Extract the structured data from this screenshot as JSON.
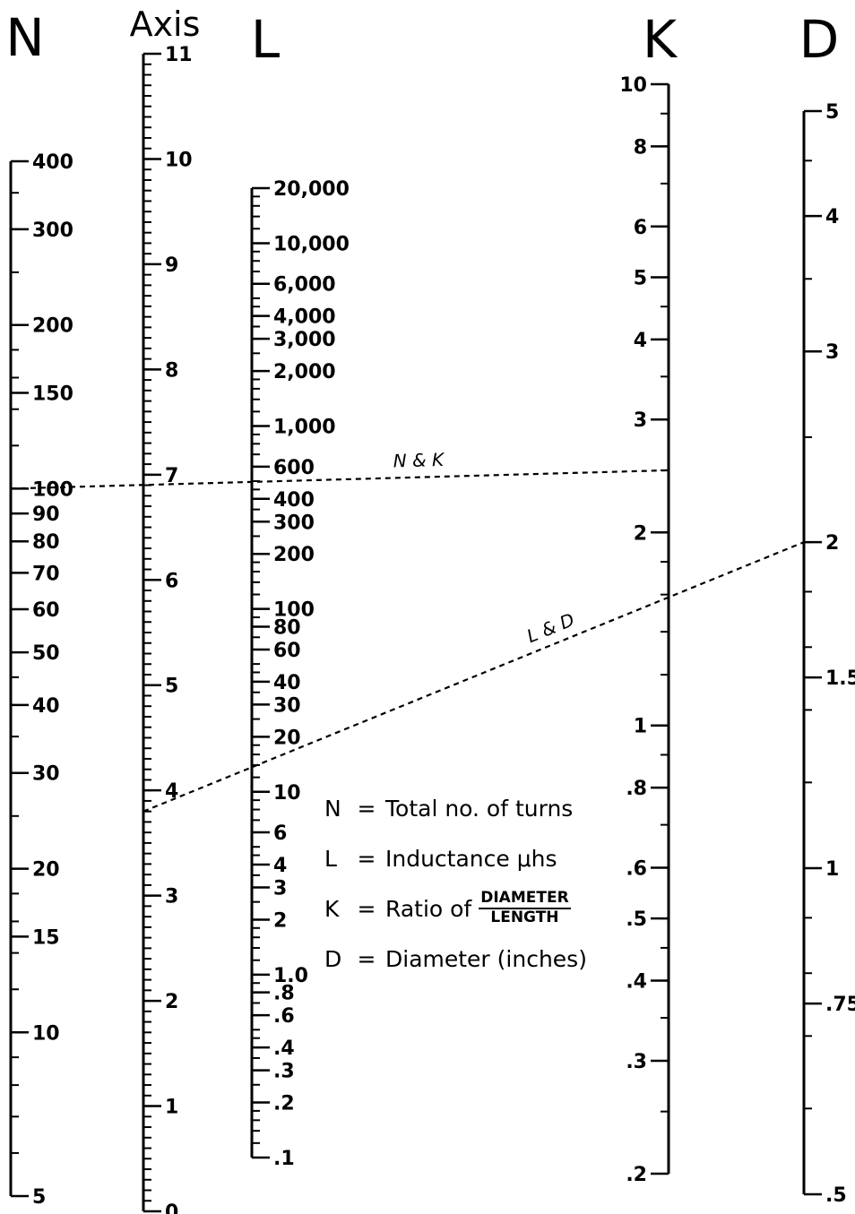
{
  "scales": [
    {
      "id": "N",
      "heading": "N",
      "type": "log",
      "range": [
        5,
        400
      ],
      "ticks_side": "right",
      "labels": [
        {
          "v": 400,
          "t": "400"
        },
        {
          "v": 300,
          "t": "300"
        },
        {
          "v": 200,
          "t": "200"
        },
        {
          "v": 150,
          "t": "150"
        },
        {
          "v": 100,
          "t": "100"
        },
        {
          "v": 90,
          "t": "90"
        },
        {
          "v": 80,
          "t": "80"
        },
        {
          "v": 70,
          "t": "70"
        },
        {
          "v": 60,
          "t": "60"
        },
        {
          "v": 50,
          "t": "50"
        },
        {
          "v": 40,
          "t": "40"
        },
        {
          "v": 30,
          "t": "30"
        },
        {
          "v": 20,
          "t": "20"
        },
        {
          "v": 15,
          "t": "15"
        },
        {
          "v": 10,
          "t": "10"
        },
        {
          "v": 5,
          "t": "5"
        }
      ]
    },
    {
      "id": "Axis",
      "heading": "Axis",
      "type": "linear",
      "range": [
        0,
        11
      ],
      "ticks_side": "right",
      "labels": [
        {
          "v": 0,
          "t": "0"
        },
        {
          "v": 1,
          "t": "1"
        },
        {
          "v": 2,
          "t": "2"
        },
        {
          "v": 3,
          "t": "3"
        },
        {
          "v": 4,
          "t": "4"
        },
        {
          "v": 5,
          "t": "5"
        },
        {
          "v": 6,
          "t": "6"
        },
        {
          "v": 7,
          "t": "7"
        },
        {
          "v": 8,
          "t": "8"
        },
        {
          "v": 9,
          "t": "9"
        },
        {
          "v": 10,
          "t": "10"
        },
        {
          "v": 11,
          "t": "11"
        }
      ]
    },
    {
      "id": "L",
      "heading": "L",
      "type": "log",
      "range": [
        0.1,
        20000
      ],
      "ticks_side": "right",
      "labels": [
        {
          "v": 20000,
          "t": "20,000"
        },
        {
          "v": 10000,
          "t": "10,000"
        },
        {
          "v": 6000,
          "t": "6,000"
        },
        {
          "v": 4000,
          "t": "4,000"
        },
        {
          "v": 3000,
          "t": "3,000"
        },
        {
          "v": 2000,
          "t": "2,000"
        },
        {
          "v": 1000,
          "t": "1,000"
        },
        {
          "v": 600,
          "t": "600"
        },
        {
          "v": 400,
          "t": "400"
        },
        {
          "v": 300,
          "t": "300"
        },
        {
          "v": 200,
          "t": "200"
        },
        {
          "v": 100,
          "t": "100"
        },
        {
          "v": 80,
          "t": "80"
        },
        {
          "v": 60,
          "t": "60"
        },
        {
          "v": 40,
          "t": "40"
        },
        {
          "v": 30,
          "t": "30"
        },
        {
          "v": 20,
          "t": "20"
        },
        {
          "v": 10,
          "t": "10"
        },
        {
          "v": 6,
          "t": "6"
        },
        {
          "v": 4,
          "t": "4"
        },
        {
          "v": 3,
          "t": "3"
        },
        {
          "v": 2,
          "t": "2"
        },
        {
          "v": 1,
          "t": "1.0"
        },
        {
          "v": 0.8,
          "t": ".8"
        },
        {
          "v": 0.6,
          "t": ".6"
        },
        {
          "v": 0.4,
          "t": ".4"
        },
        {
          "v": 0.3,
          "t": ".3"
        },
        {
          "v": 0.2,
          "t": ".2"
        },
        {
          "v": 0.1,
          "t": ".1"
        }
      ]
    },
    {
      "id": "K",
      "heading": "K",
      "type": "log",
      "range": [
        0.2,
        10
      ],
      "ticks_side": "left",
      "labels": [
        {
          "v": 10,
          "t": "10"
        },
        {
          "v": 8,
          "t": "8"
        },
        {
          "v": 6,
          "t": "6"
        },
        {
          "v": 5,
          "t": "5"
        },
        {
          "v": 4,
          "t": "4"
        },
        {
          "v": 3,
          "t": "3"
        },
        {
          "v": 2,
          "t": "2"
        },
        {
          "v": 1,
          "t": "1"
        },
        {
          "v": 0.8,
          "t": ".8"
        },
        {
          "v": 0.6,
          "t": ".6"
        },
        {
          "v": 0.5,
          "t": ".5"
        },
        {
          "v": 0.4,
          "t": ".4"
        },
        {
          "v": 0.3,
          "t": ".3"
        },
        {
          "v": 0.2,
          "t": ".2"
        }
      ]
    },
    {
      "id": "D",
      "heading": "D",
      "type": "log",
      "range": [
        0.5,
        5
      ],
      "ticks_side": "right",
      "labels": [
        {
          "v": 5,
          "t": "5"
        },
        {
          "v": 4,
          "t": "4"
        },
        {
          "v": 3,
          "t": "3"
        },
        {
          "v": 2,
          "t": "2"
        },
        {
          "v": 1.5,
          "t": "1.5"
        },
        {
          "v": 1,
          "t": "1"
        },
        {
          "v": 0.75,
          "t": ".75"
        },
        {
          "v": 0.5,
          "t": ".5"
        }
      ]
    }
  ],
  "example_lines": [
    {
      "id": "nk",
      "label": "N & K",
      "from": {
        "scale": "N",
        "v": 100
      },
      "to": {
        "scale": "K",
        "v": 2.5
      }
    },
    {
      "id": "ld",
      "label": "L & D",
      "from": {
        "scale": "Axis",
        "v": 3.8
      },
      "to": {
        "scale": "D",
        "v": 2
      }
    }
  ],
  "legend": {
    "rows": [
      {
        "sym": "N",
        "eq": "=",
        "text": "Total no. of turns"
      },
      {
        "sym": "L",
        "eq": "=",
        "text": "Inductance μhs"
      },
      {
        "sym": "K",
        "eq": "=",
        "text": "Ratio of",
        "frac_num": "DIAMETER",
        "frac_den": "LENGTH"
      },
      {
        "sym": "D",
        "eq": "=",
        "text": "Diameter (inches)"
      }
    ]
  }
}
